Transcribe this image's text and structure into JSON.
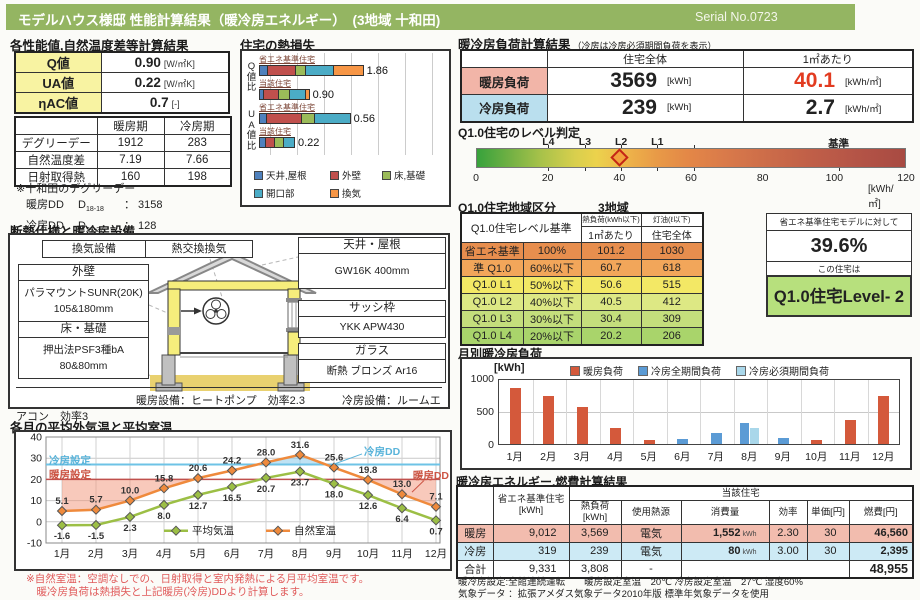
{
  "header": {
    "title": "モデルハウス様邸 性能計算結果（暖冷房エネルギー）　(3地域 十和田)",
    "serial": "Serial No.0723"
  },
  "performance": {
    "title": "各性能値,自然温度差等計算結果",
    "metrics": [
      {
        "label": "Q値",
        "value": "0.90",
        "unit": "[W/㎡K]"
      },
      {
        "label": "UA値",
        "value": "0.22",
        "unit": "[W/㎡K]"
      },
      {
        "label": "ηAC値",
        "value": "0.7",
        "unit": "[-]"
      }
    ],
    "season_table": {
      "columns": [
        "",
        "暖房期",
        "冷房期"
      ],
      "rows": [
        {
          "label": "デグリーデー",
          "heating": "1912",
          "cooling": "283"
        },
        {
          "label": "自然温度差",
          "heating": "7.19",
          "cooling": "7.66"
        },
        {
          "label": "日射取得熱",
          "heating": "160",
          "cooling": "198"
        }
      ]
    },
    "dd_note_title": "※十和田のデグリーデー",
    "dd_lines": [
      {
        "label": "暖房DD",
        "symbol": "D",
        "sub": "18-18",
        "value": "： 3158"
      },
      {
        "label": "冷房DD",
        "symbol": "D",
        "sub": "27-27",
        "value": "： 128"
      }
    ]
  },
  "load_result": {
    "title": "暖冷房負荷計算結果",
    "subtitle": "（冷房は冷房必須期間負荷を表示）",
    "columns": [
      "住宅全体",
      "1㎡あたり"
    ],
    "rows": [
      {
        "label": "暖房負荷",
        "whole": "3569",
        "whole_unit": "[kWh]",
        "per_m2": "40.1",
        "per_unit": "[kWh/㎡]",
        "label_color": "#f2b5a8",
        "per_red": true
      },
      {
        "label": "冷房負荷",
        "whole": "239",
        "whole_unit": "[kWh]",
        "per_m2": "2.7",
        "per_unit": "[kWh/㎡]",
        "label_color": "#badfee",
        "per_red": false
      }
    ]
  },
  "level_judge": {
    "title": "Q1.0住宅のレベル判定",
    "min": 0,
    "max": 120,
    "ticks": [
      0,
      20,
      40,
      60,
      80,
      100,
      120
    ],
    "unit": "[kWh/㎡]",
    "markers": [
      {
        "label": "L4",
        "value": 20.2
      },
      {
        "label": "L3",
        "value": 30.4
      },
      {
        "label": "L2",
        "value": 40.5
      },
      {
        "label": "L1",
        "value": 50.6
      },
      {
        "label": "",
        "value": 60.7
      },
      {
        "label": "基準",
        "value": 101.2
      }
    ],
    "pointer_value": 40.1
  },
  "region_table": {
    "title": "Q1.0住宅地域区分",
    "region": "3地域",
    "header_main": "Q1.0住宅レベル基準",
    "col_heat": "熱負荷(kWh以下)",
    "col_oil": "灯油(ℓ以下)",
    "col_per": "1㎡あたり",
    "col_whole": "住宅全体",
    "rows": [
      {
        "label": "省エネ基準",
        "pct": "100%",
        "per_m2": "101.2",
        "whole": "1030",
        "color": "#e78e4e"
      },
      {
        "label": "準 Q1.0",
        "pct": "60%以下",
        "per_m2": "60.7",
        "whole": "618",
        "color": "#f2a65a"
      },
      {
        "label": "Q1.0 L1",
        "pct": "50%以下",
        "per_m2": "50.6",
        "whole": "515",
        "color": "#f3e865"
      },
      {
        "label": "Q1.0 L2",
        "pct": "40%以下",
        "per_m2": "40.5",
        "whole": "412",
        "color": "#dde884"
      },
      {
        "label": "Q1.0 L3",
        "pct": "30%以下",
        "per_m2": "30.4",
        "whole": "309",
        "color": "#c4de7c"
      },
      {
        "label": "Q1.0 L4",
        "pct": "20%以下",
        "per_m2": "20.2",
        "whole": "206",
        "color": "#a9d46b"
      }
    ]
  },
  "level_result": {
    "caption": "省エネ基準住宅モデルに対して",
    "percent": "39.6%",
    "middle": "この住宅は",
    "result": "Q1.0住宅Level- 2",
    "result_color": "#b7e07d"
  },
  "insulation": {
    "title": "断熱仕様と暖冷房設備",
    "vent_label": "換気設備",
    "vent_value": "熱交換換気",
    "wall_label": "外壁",
    "wall_line1": "パラマウントSUNR(20K)",
    "wall_line2": "105&180mm",
    "floor_label": "床・基礎",
    "floor_line1": "押出法PSF3種bA",
    "floor_line2": "80&80mm",
    "ceiling_label": "天井・屋根",
    "ceiling_value": "GW16K 400mm",
    "sash_label": "サッシ枠",
    "sash_value": "YKK APW430",
    "glass_label": "ガラス",
    "glass_value": "断熱 ブロンズ Ar16",
    "heating_note": "暖房設備：ヒートポンプ　効率2.3",
    "cooling_note": "冷房設備：ルームエアコン　効率3"
  },
  "energy_table": {
    "title": "暖冷房エネルギー,燃費計算結果",
    "header": {
      "std": "省エネ基準住宅[kWh]",
      "house": "当該住宅",
      "load": "熱負荷[kWh]",
      "source": "使用熱源",
      "consumption": "消費量",
      "efficiency": "効率",
      "price": "単価[円]",
      "cost": "燃費[円]"
    },
    "rows": [
      {
        "label": "暖房",
        "std": "9,012",
        "load": "3,569",
        "source": "電気",
        "consumption": "1,552",
        "cons_unit": "kWh",
        "efficiency": "2.30",
        "price": "30",
        "cost": "46,560",
        "color": "#f2bcae"
      },
      {
        "label": "冷房",
        "std": "319",
        "load": "239",
        "source": "電気",
        "consumption": "80",
        "cons_unit": "kWh",
        "efficiency": "3.00",
        "price": "30",
        "cost": "2,395",
        "color": "#cdeaf5"
      },
      {
        "label": "合計",
        "std": "9,331",
        "load": "3,808",
        "source": "-",
        "consumption": "",
        "cons_unit": "",
        "efficiency": "",
        "price": "",
        "cost": "48,955",
        "color": "#ffffff"
      }
    ],
    "notes": [
      "暖冷房設定:全館連続運転　　暖房設定室温　20℃ 冷房設定室温　27℃ 湿度60%",
      "気象データ ：拡張アメダス気象データ2010年版 標準年気象データを使用"
    ]
  },
  "temp_notes": [
    "※自然室温：空調なしでの、日射取得と室内発熱による月平均室温です。",
    "　暖冷房負荷は熱損失と上記暖房(冷房)DDより計算します。"
  ],
  "chart_data": [
    {
      "type": "bar",
      "title": "住宅の熱損失",
      "stacked": true,
      "orientation": "horizontal",
      "legend": [
        {
          "label": "天井,屋根",
          "color": "#4f81bd"
        },
        {
          "label": "外壁",
          "color": "#c0504d"
        },
        {
          "label": "床,基礎",
          "color": "#9bbb59"
        },
        {
          "label": "開口部",
          "color": "#4bacc6"
        },
        {
          "label": "換気",
          "color": "#f79646"
        }
      ],
      "groups": [
        {
          "axis": "Q値比",
          "scale_max": 3.2,
          "bars": [
            {
              "label": "省エネ基準住宅",
              "total": 1.86,
              "segments": [
                0.16,
                0.5,
                0.17,
                0.51,
                0.52
              ]
            },
            {
              "label": "当該住宅",
              "total": 0.9,
              "segments": [
                0.08,
                0.28,
                0.19,
                0.28,
                0.07
              ]
            }
          ]
        },
        {
          "axis": "UA値比",
          "scale_max": 1.1,
          "bars": [
            {
              "label": "省エネ基準住宅",
              "total": 0.56,
              "segments": [
                0.05,
                0.21,
                0.08,
                0.22,
                0
              ]
            },
            {
              "label": "当該住宅",
              "total": 0.22,
              "segments": [
                0.04,
                0.06,
                0.05,
                0.07,
                0
              ]
            }
          ]
        }
      ]
    },
    {
      "type": "bar",
      "title": "月別暖冷房負荷",
      "unit": "[kWh]",
      "categories": [
        "1月",
        "2月",
        "3月",
        "4月",
        "5月",
        "6月",
        "7月",
        "8月",
        "9月",
        "10月",
        "11月",
        "12月"
      ],
      "series": [
        {
          "name": "暖房負荷",
          "color": "#d4593b",
          "values": [
            850,
            730,
            560,
            245,
            55,
            0,
            0,
            0,
            0,
            55,
            370,
            720
          ]
        },
        {
          "name": "冷房全期間負荷",
          "color": "#5b9bd5",
          "values": [
            0,
            0,
            0,
            0,
            0,
            70,
            160,
            319,
            85,
            0,
            0,
            0
          ]
        },
        {
          "name": "冷房必須期間負荷",
          "color": "#a9d7ea",
          "values": [
            0,
            0,
            0,
            0,
            0,
            0,
            0,
            239,
            0,
            0,
            0,
            0
          ]
        }
      ],
      "ylim": [
        0,
        1000
      ],
      "yticks": [
        0,
        500,
        1000
      ]
    },
    {
      "type": "line",
      "title": "各月の平均外気温と平均室温",
      "categories": [
        "1月",
        "2月",
        "3月",
        "4月",
        "5月",
        "6月",
        "7月",
        "8月",
        "9月",
        "10月",
        "11月",
        "12月"
      ],
      "series": [
        {
          "name": "自然室温",
          "color": "#ef8a3c",
          "values": [
            5.1,
            5.7,
            10.0,
            15.8,
            20.6,
            24.2,
            28.0,
            31.6,
            25.6,
            19.8,
            13.0,
            7.1
          ]
        },
        {
          "name": "平均気温",
          "color": "#9cbf45",
          "values": [
            -1.6,
            -1.5,
            2.3,
            8.0,
            12.7,
            16.5,
            20.7,
            23.7,
            18.0,
            12.6,
            6.4,
            0.7
          ]
        }
      ],
      "reference_lines": [
        {
          "label": "冷房設定",
          "value": 27,
          "color": "#6ec3e6"
        },
        {
          "label": "暖房設定",
          "value": 20,
          "color": "#c0504d"
        }
      ],
      "dd_labels": [
        {
          "label": "冷房DD",
          "color": "#5ab4da"
        },
        {
          "label": "暖房DD",
          "color": "#cc5544"
        }
      ],
      "ylim": [
        -10,
        40
      ],
      "yticks": [
        -10,
        0,
        10,
        20,
        30,
        40
      ]
    }
  ]
}
